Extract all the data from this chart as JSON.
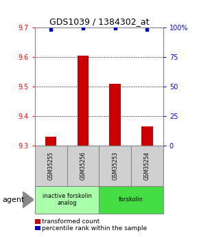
{
  "title": "GDS1039 / 1384302_at",
  "samples": [
    "GSM35255",
    "GSM35256",
    "GSM35253",
    "GSM35254"
  ],
  "bar_values": [
    9.33,
    9.605,
    9.51,
    9.365
  ],
  "bar_baseline": 9.3,
  "percentile_values": [
    98,
    99,
    99,
    98
  ],
  "ylim_left": [
    9.3,
    9.7
  ],
  "ylim_right": [
    0,
    100
  ],
  "yticks_left": [
    9.3,
    9.4,
    9.5,
    9.6,
    9.7
  ],
  "yticks_right": [
    0,
    25,
    50,
    75,
    100
  ],
  "bar_color": "#cc0000",
  "percentile_color": "#0000cc",
  "grid_color": "#000000",
  "groups": [
    {
      "label": "inactive forskolin\nanalog",
      "samples_idx": [
        0,
        1
      ],
      "color": "#aaffaa"
    },
    {
      "label": "forskolin",
      "samples_idx": [
        2,
        3
      ],
      "color": "#44dd44"
    }
  ],
  "agent_label": "agent",
  "legend": [
    {
      "color": "#cc0000",
      "label": "transformed count"
    },
    {
      "color": "#0000cc",
      "label": "percentile rank within the sample"
    }
  ],
  "background_color": "#ffffff",
  "title_fontsize": 9,
  "tick_fontsize": 7,
  "sample_fontsize": 5.5,
  "group_fontsize": 6,
  "legend_fontsize": 6.5,
  "agent_fontsize": 8
}
